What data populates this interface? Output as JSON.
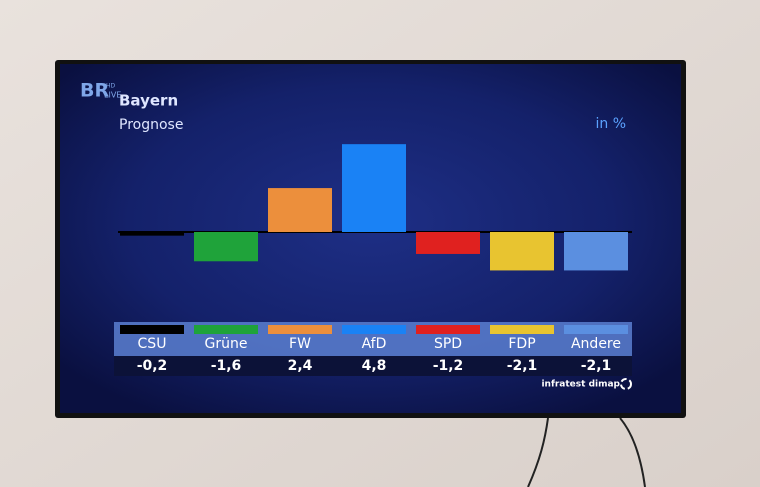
{
  "chart_data": {
    "type": "bar",
    "logo": "BR",
    "logo_badge": [
      "HD",
      "LIVE"
    ],
    "title": "Bayern",
    "subtitle": "Prognose",
    "unit": "in %",
    "source": "infratest dimap",
    "categories": [
      "CSU",
      "Grüne",
      "FW",
      "AfD",
      "SPD",
      "FDP",
      "Andere"
    ],
    "values": [
      -0.2,
      -1.6,
      2.4,
      4.8,
      -1.2,
      -2.1,
      -2.1
    ],
    "value_labels": [
      "-0,2",
      "-1,6",
      "2,4",
      "4,8",
      "-1,2",
      "-2,1",
      "-2,1"
    ],
    "colors": [
      "#000000",
      "#1fa33a",
      "#ec8f3c",
      "#1a82f5",
      "#e0211f",
      "#e8c430",
      "#5b8fe0"
    ]
  }
}
